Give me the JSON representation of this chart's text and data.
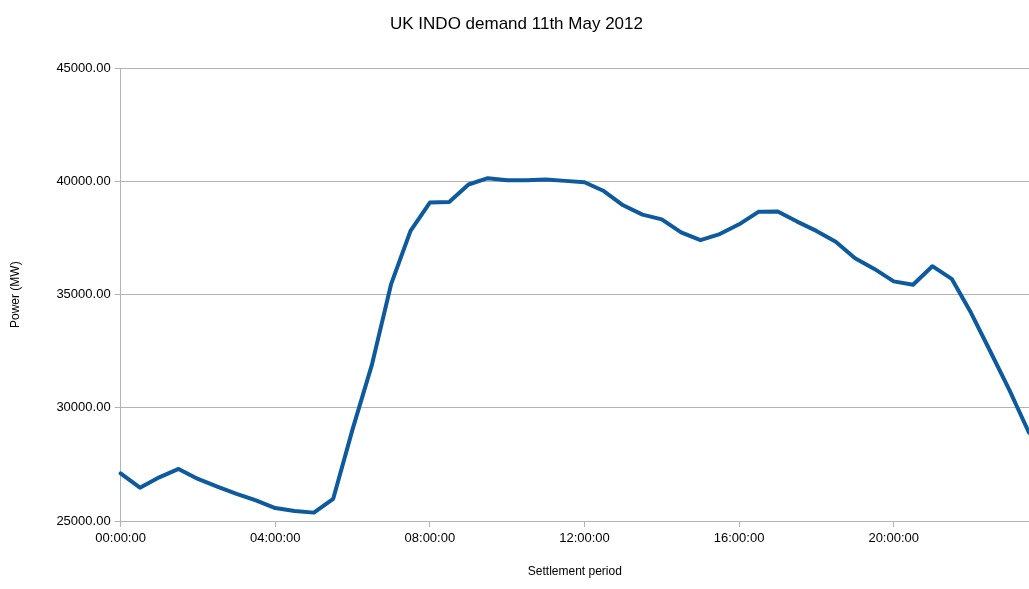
{
  "chart_data": {
    "type": "line",
    "title": "UK INDO demand 11th May 2012",
    "xlabel": "Settlement period",
    "ylabel": "Power (MW)",
    "categories": [
      "00:00:00",
      null,
      null,
      null,
      null,
      null,
      null,
      null,
      "04:00:00",
      null,
      null,
      null,
      null,
      null,
      null,
      null,
      "08:00:00",
      null,
      null,
      null,
      null,
      null,
      null,
      null,
      "12:00:00",
      null,
      null,
      null,
      null,
      null,
      null,
      null,
      "16:00:00",
      null,
      null,
      null,
      null,
      null,
      null,
      null,
      "20:00:00",
      null,
      null,
      null,
      null,
      null,
      null,
      null
    ],
    "series": [
      {
        "color": "#0d5a9e",
        "values": [
          27100,
          26470,
          26930,
          27300,
          26860,
          26520,
          26200,
          25910,
          25570,
          25440,
          25370,
          25980,
          29050,
          31900,
          35480,
          37820,
          39070,
          39100,
          39870,
          40150,
          40060,
          40060,
          40090,
          40030,
          39970,
          39580,
          38950,
          38540,
          38330,
          37750,
          37410,
          37680,
          38110,
          38660,
          38680,
          38230,
          37820,
          37340,
          36610,
          36140,
          35590,
          35440,
          36260,
          35700,
          34200,
          32490,
          30760,
          28900
        ]
      }
    ],
    "ylim": [
      25000,
      45000
    ],
    "yticks": [
      {
        "value": 25000,
        "label": "25000.00"
      },
      {
        "value": 30000,
        "label": "30000.00"
      },
      {
        "value": 35000,
        "label": "35000.00"
      },
      {
        "value": 40000,
        "label": "40000.00"
      },
      {
        "value": 45000,
        "label": "45000.00"
      }
    ],
    "grid": "y",
    "legend": false,
    "marker": "none",
    "line_style": "solid"
  }
}
